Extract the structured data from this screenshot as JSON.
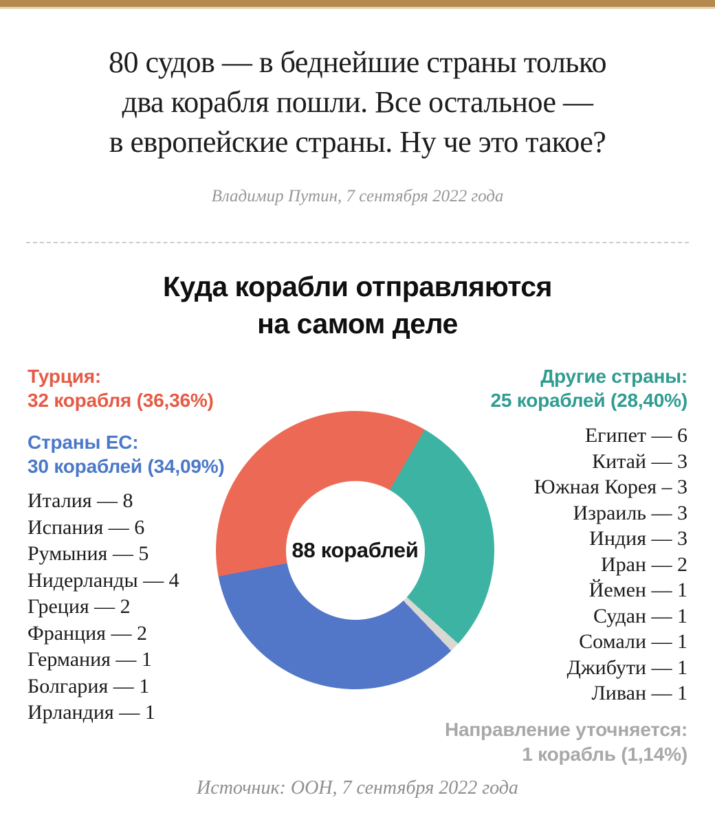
{
  "page": {
    "top_bar_color": "#b5894e",
    "top_bar_shade_color": "#e6d4b2",
    "background": "#ffffff"
  },
  "quote": {
    "lines": [
      "80 судов — в беднейшие страны только",
      "два корабля пошли. Все остальное —",
      "в европейские страны. Ну че это такое?"
    ],
    "attribution": "Владимир Путин, 7 сентября 2022 года"
  },
  "chart": {
    "title_line1": "Куда корабли отправляются",
    "title_line2": "на самом деле",
    "center_label": "88 кораблей",
    "source": "Источник: ООН, 7 сентября 2022 года"
  },
  "legend": {
    "turkey": {
      "title": "Турция:",
      "value": "32 корабля (36,36%)",
      "color": "#e65a45"
    },
    "eu": {
      "title": "Страны ЕС:",
      "value": "30 кораблей (34,09%)",
      "color": "#4a78c8",
      "items": [
        "Италия — 8",
        "Испания — 6",
        "Румыния — 5",
        "Нидерланды — 4",
        "Греция — 2",
        "Франция — 2",
        "Германия — 1",
        "Болгария — 1",
        "Ирландия — 1"
      ]
    },
    "others": {
      "title": "Другие страны:",
      "value": "25 кораблей (28,40%)",
      "color": "#2f9c90",
      "items": [
        "Египет — 6",
        "Китай — 3",
        "Южная Корея – 3",
        "Израиль — 3",
        "Индия — 3",
        "Иран — 2",
        "Йемен — 1",
        "Судан — 1",
        "Сомали — 1",
        "Джибути — 1",
        "Ливан — 1"
      ]
    },
    "unknown": {
      "title": "Направление уточняется:",
      "value": "1 корабль (1,14%)",
      "color": "#a8a8a8"
    }
  },
  "chart_data": {
    "type": "pie",
    "donut": true,
    "title": "Куда корабли отправляются на самом деле",
    "total": 88,
    "total_label": "88 кораблей",
    "start_angle_deg": 30,
    "legend_position": "sides",
    "segments": [
      {
        "label": "Другие страны",
        "ships": 25,
        "pct": 28.4,
        "color": "#3db3a3",
        "breakdown": [
          {
            "country": "Египет",
            "count": 6
          },
          {
            "country": "Китай",
            "count": 3
          },
          {
            "country": "Южная Корея",
            "count": 3
          },
          {
            "country": "Израиль",
            "count": 3
          },
          {
            "country": "Индия",
            "count": 3
          },
          {
            "country": "Иран",
            "count": 2
          },
          {
            "country": "Йемен",
            "count": 1
          },
          {
            "country": "Судан",
            "count": 1
          },
          {
            "country": "Сомали",
            "count": 1
          },
          {
            "country": "Джибути",
            "count": 1
          },
          {
            "country": "Ливан",
            "count": 1
          }
        ]
      },
      {
        "label": "Направление уточняется",
        "ships": 1,
        "pct": 1.14,
        "color": "#d9d8d3",
        "breakdown": []
      },
      {
        "label": "Страны ЕС",
        "ships": 30,
        "pct": 34.09,
        "color": "#5276c8",
        "breakdown": [
          {
            "country": "Италия",
            "count": 8
          },
          {
            "country": "Испания",
            "count": 6
          },
          {
            "country": "Румыния",
            "count": 5
          },
          {
            "country": "Нидерланды",
            "count": 4
          },
          {
            "country": "Греция",
            "count": 2
          },
          {
            "country": "Франция",
            "count": 2
          },
          {
            "country": "Германия",
            "count": 1
          },
          {
            "country": "Болгария",
            "count": 1
          },
          {
            "country": "Ирландия",
            "count": 1
          }
        ]
      },
      {
        "label": "Турция",
        "ships": 32,
        "pct": 36.36,
        "color": "#ec6a55",
        "breakdown": []
      }
    ]
  }
}
